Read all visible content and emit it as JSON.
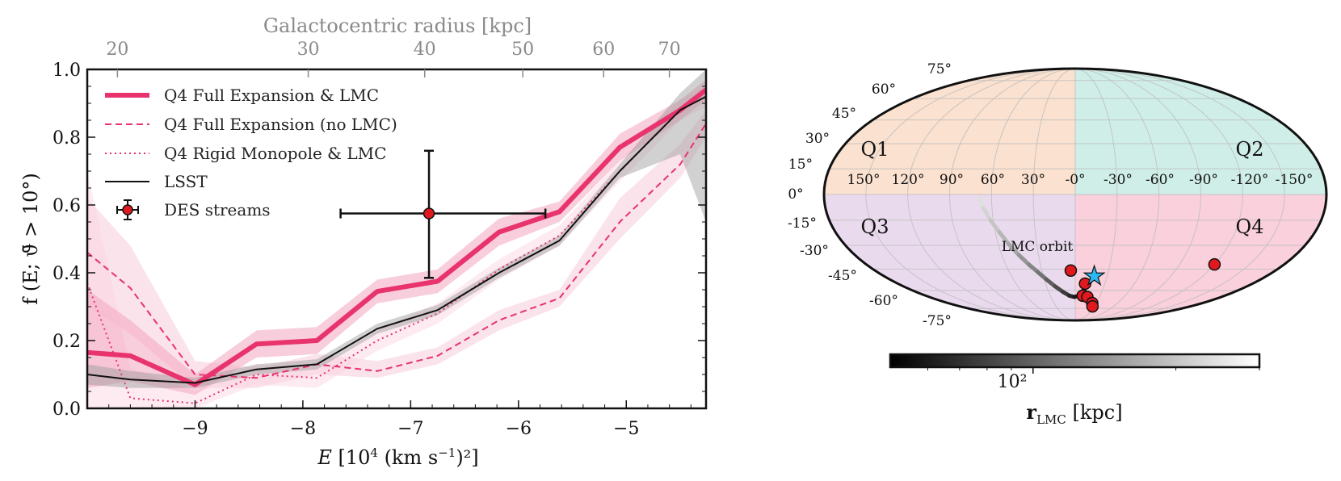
{
  "chart_data": [
    {
      "type": "line",
      "title": "",
      "xlabel": "E [10^4 (km s^-1)^2]",
      "xlabel_parts": {
        "main": "E [10",
        "sup1": "4",
        "mid": " (km s",
        "sup2": "−1",
        "end": ")²]"
      },
      "ylabel": "f (E; ϑ̄ > 10°)",
      "top_axis_label": "Galactocentric radius [kpc]",
      "top_ticks": [
        {
          "label": "20",
          "at_E": -9.72
        },
        {
          "label": "30",
          "at_E": -7.95
        },
        {
          "label": "40",
          "at_E": -6.87
        },
        {
          "label": "50",
          "at_E": -5.96
        },
        {
          "label": "60",
          "at_E": -5.21
        },
        {
          "label": "70",
          "at_E": -4.6
        }
      ],
      "xlim": [
        -10.0,
        -4.26
      ],
      "ylim": [
        0.0,
        1.0
      ],
      "xticks": [
        -9,
        -8,
        -7,
        -6,
        -5
      ],
      "xtick_labels": [
        "−9",
        "−8",
        "−7",
        "−6",
        "−5"
      ],
      "yticks": [
        0.0,
        0.2,
        0.4,
        0.6,
        0.8,
        1.0
      ],
      "ytick_labels": [
        "0.0",
        "0.2",
        "0.4",
        "0.6",
        "0.8",
        "1.0"
      ],
      "legend_position": "upper-left",
      "series": [
        {
          "name": "Q4 Full Expansion & LMC",
          "style": "thick",
          "color": "#e8336d",
          "x": [
            -10.0,
            -9.6,
            -9.0,
            -8.43,
            -7.87,
            -7.31,
            -6.75,
            -6.18,
            -5.62,
            -5.06,
            -4.5,
            -4.26
          ],
          "y": [
            0.165,
            0.155,
            0.07,
            0.19,
            0.2,
            0.345,
            0.375,
            0.52,
            0.58,
            0.77,
            0.88,
            0.94
          ],
          "band_low": [
            0.06,
            0.08,
            0.04,
            0.15,
            0.16,
            0.31,
            0.34,
            0.48,
            0.55,
            0.73,
            0.85,
            0.91
          ],
          "band_high": [
            0.35,
            0.26,
            0.1,
            0.23,
            0.24,
            0.38,
            0.41,
            0.56,
            0.61,
            0.81,
            0.91,
            0.97
          ]
        },
        {
          "name": "Q4 Full Expansion (no LMC)",
          "style": "dashed",
          "color": "#e8336d",
          "x": [
            -10.0,
            -9.6,
            -9.0,
            -8.43,
            -7.87,
            -7.31,
            -6.75,
            -6.18,
            -5.62,
            -5.06,
            -4.5,
            -4.26
          ],
          "y": [
            0.46,
            0.355,
            0.1,
            0.09,
            0.13,
            0.11,
            0.155,
            0.26,
            0.325,
            0.55,
            0.72,
            0.84
          ],
          "band_low": [
            0.3,
            0.22,
            0.06,
            0.06,
            0.1,
            0.09,
            0.13,
            0.23,
            0.3,
            0.5,
            0.68,
            0.8
          ],
          "band_high": [
            0.62,
            0.48,
            0.14,
            0.12,
            0.16,
            0.14,
            0.18,
            0.29,
            0.35,
            0.62,
            0.78,
            0.88
          ]
        },
        {
          "name": "Q4 Rigid Monopole & LMC",
          "style": "dotted",
          "color": "#e8336d",
          "x": [
            -10.0,
            -9.6,
            -9.0,
            -8.43,
            -7.87,
            -7.31,
            -6.75,
            -6.18,
            -5.62,
            -5.06,
            -4.5,
            -4.26
          ],
          "y": [
            0.37,
            0.03,
            0.015,
            0.1,
            0.09,
            0.2,
            0.28,
            0.41,
            0.51,
            0.7,
            0.88,
            0.92
          ],
          "band_low": [
            0.0,
            0.0,
            0.0,
            0.07,
            0.06,
            0.17,
            0.25,
            0.38,
            0.48,
            0.67,
            0.85,
            0.89
          ],
          "band_high": [
            0.7,
            0.12,
            0.05,
            0.13,
            0.12,
            0.23,
            0.31,
            0.44,
            0.54,
            0.73,
            0.91,
            0.95
          ]
        },
        {
          "name": "LSST",
          "style": "solid",
          "color": "#111111",
          "x": [
            -10.0,
            -9.6,
            -9.0,
            -8.43,
            -7.87,
            -7.31,
            -6.75,
            -6.18,
            -5.62,
            -5.06,
            -4.5,
            -4.26
          ],
          "y": [
            0.1,
            0.085,
            0.075,
            0.115,
            0.13,
            0.235,
            0.29,
            0.4,
            0.495,
            0.7,
            0.88,
            0.92
          ],
          "band_low": [
            0.07,
            0.06,
            0.06,
            0.1,
            0.115,
            0.22,
            0.275,
            0.385,
            0.48,
            0.68,
            0.75,
            0.55
          ],
          "band_high": [
            0.13,
            0.11,
            0.09,
            0.13,
            0.145,
            0.25,
            0.305,
            0.415,
            0.51,
            0.72,
            0.93,
            1.0
          ]
        }
      ],
      "des_streams": {
        "name": "DES streams",
        "x": -6.83,
        "y": 0.575,
        "xerr_low": -7.65,
        "xerr_high": -5.75,
        "yerr_low": 0.385,
        "yerr_high": 0.76
      }
    },
    {
      "type": "scatter",
      "projection": "mollweide",
      "quadrants": [
        {
          "label": "Q1",
          "color": "#fbe1cf"
        },
        {
          "label": "Q2",
          "color": "#cfeee7"
        },
        {
          "label": "Q3",
          "color": "#eadaee"
        },
        {
          "label": "Q4",
          "color": "#f9d0dc"
        }
      ],
      "longitude_labels": [
        "150°",
        "120°",
        "90°",
        "60°",
        "30°",
        "-0°",
        "-30°",
        "-60°",
        "-90°",
        "-120°",
        "-150°"
      ],
      "latitude_labels_north": [
        "75°",
        "60°",
        "45°",
        "30°",
        "15°",
        "0°"
      ],
      "latitude_labels_south": [
        "-15°",
        "-30°",
        "-45°",
        "-60°",
        "-75°"
      ],
      "orbit_label": "LMC orbit",
      "lmc_orbit": {
        "lon": [
          69,
          66,
          62,
          57,
          52,
          46,
          40,
          34,
          28,
          21,
          14,
          7,
          1,
          -4,
          -8,
          -11,
          -14,
          -16,
          -18
        ],
        "lat": [
          -2,
          -8,
          -15,
          -22,
          -29,
          -36,
          -42,
          -47,
          -52,
          -57,
          -61,
          -64,
          -65,
          -64,
          -61,
          -58,
          -55,
          -52,
          -50
        ],
        "r_kpc": [
          250,
          230,
          210,
          190,
          170,
          150,
          135,
          120,
          105,
          90,
          80,
          70,
          62,
          56,
          52,
          50,
          49,
          50,
          50
        ]
      },
      "lmc_position": {
        "lon": -18,
        "lat": -50
      },
      "des_streams": [
        {
          "lon": 4,
          "lat": -46
        },
        {
          "lon": -10,
          "lat": -55
        },
        {
          "lon": -9,
          "lat": -64
        },
        {
          "lon": -15,
          "lat": -65
        },
        {
          "lon": -24,
          "lat": -70
        },
        {
          "lon": -27,
          "lat": -73
        },
        {
          "lon": -120,
          "lat": -42
        }
      ],
      "colorbar": {
        "label": "r_LMC [kpc]",
        "label_main": "r",
        "label_sub": "LMC",
        "label_unit": " [kpc]",
        "scale": "log",
        "min": 50,
        "max": 300,
        "tick_label": "10²",
        "tick_value": 100
      }
    }
  ],
  "legend_symbols": {
    "star": "★"
  }
}
